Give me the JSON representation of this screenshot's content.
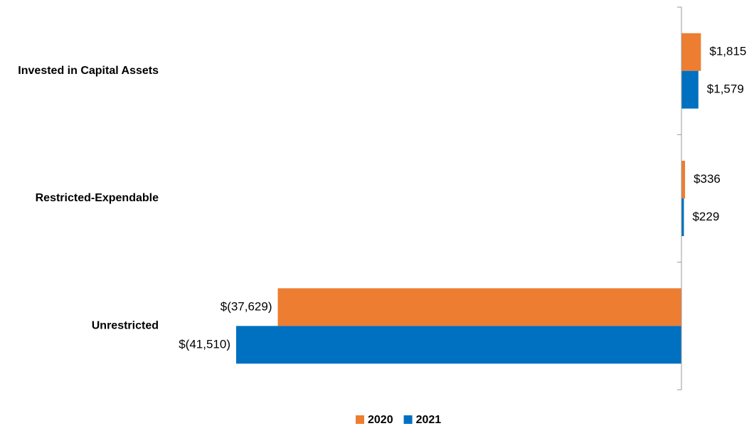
{
  "chart_data": {
    "type": "hbar",
    "categories": [
      "Invested in Capital Assets",
      "Restricted-Expendable",
      "Unrestricted"
    ],
    "series": [
      {
        "name": "2020",
        "color": "#ED7D31",
        "values": [
          1815,
          336,
          -37629
        ],
        "value_labels": [
          "$1,815",
          "$336",
          "$(37,629)"
        ]
      },
      {
        "name": "2021",
        "color": "#0070C0",
        "values": [
          1579,
          229,
          -41510
        ],
        "value_labels": [
          "$1,579",
          "$229",
          "$(41,510)"
        ]
      }
    ],
    "legend": "bottom"
  }
}
